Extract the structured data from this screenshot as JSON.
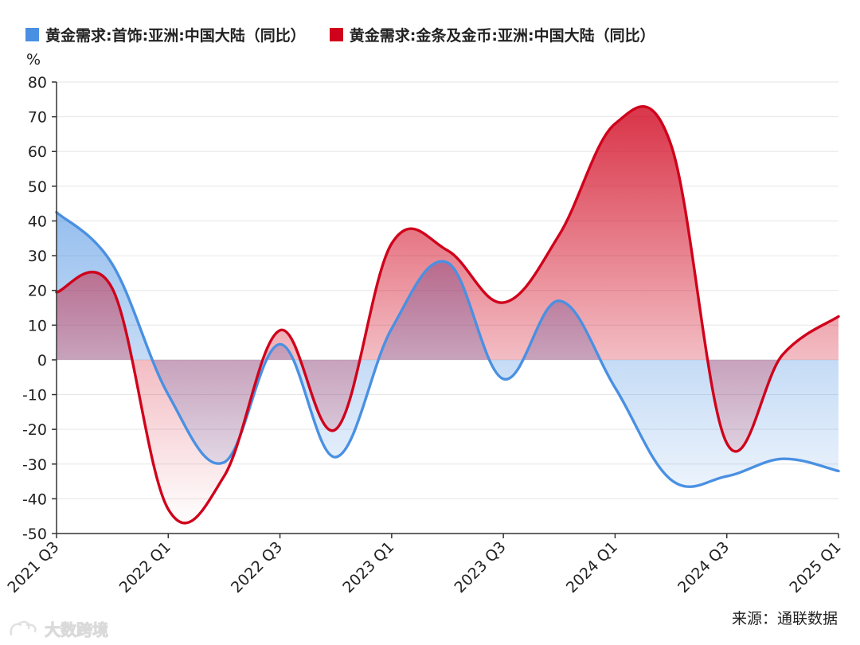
{
  "legend": [
    {
      "label": "黄金需求:首饰:亚洲:中国大陆（同比）",
      "color": "#4a90e2"
    },
    {
      "label": "黄金需求:金条及金币:亚洲:中国大陆（同比）",
      "color": "#d0021b"
    }
  ],
  "unit": "%",
  "source": "来源：通联数据",
  "watermark": "大数跨境",
  "chart_data": {
    "type": "area",
    "title": "",
    "xlabel": "",
    "ylabel": "%",
    "ylim": [
      -50,
      80
    ],
    "yticks": [
      80,
      70,
      60,
      50,
      40,
      30,
      20,
      10,
      0,
      -10,
      -20,
      -30,
      -40,
      -50
    ],
    "x": [
      "2021 Q3",
      "2021 Q4",
      "2022 Q1",
      "2022 Q2",
      "2022 Q3",
      "2022 Q4",
      "2023 Q1",
      "2023 Q2",
      "2023 Q3",
      "2023 Q4",
      "2024 Q1",
      "2024 Q2",
      "2024 Q3",
      "2024 Q4",
      "2025 Q1"
    ],
    "xticks": [
      "2021 Q3",
      "2022 Q1",
      "2022 Q3",
      "2023 Q1",
      "2023 Q3",
      "2024 Q1",
      "2024 Q3",
      "2025 Q1"
    ],
    "grid": true,
    "legend_position": "top-left",
    "series": [
      {
        "name": "黄金需求:首饰:亚洲:中国大陆（同比）",
        "color": "#4a90e2",
        "values": [
          42.5,
          27.5,
          -10,
          -29.5,
          4.5,
          -28,
          9,
          28,
          -5.5,
          17,
          -8,
          -34.5,
          -33.5,
          -28.5,
          -32
        ]
      },
      {
        "name": "黄金需求:金条及金币:亚洲:中国大陆（同比）",
        "color": "#d0021b",
        "values": [
          19.5,
          20.5,
          -43,
          -33.5,
          8.5,
          -20,
          33.5,
          31.5,
          16.5,
          36,
          68,
          62,
          -24,
          1.5,
          12.5
        ]
      }
    ]
  }
}
